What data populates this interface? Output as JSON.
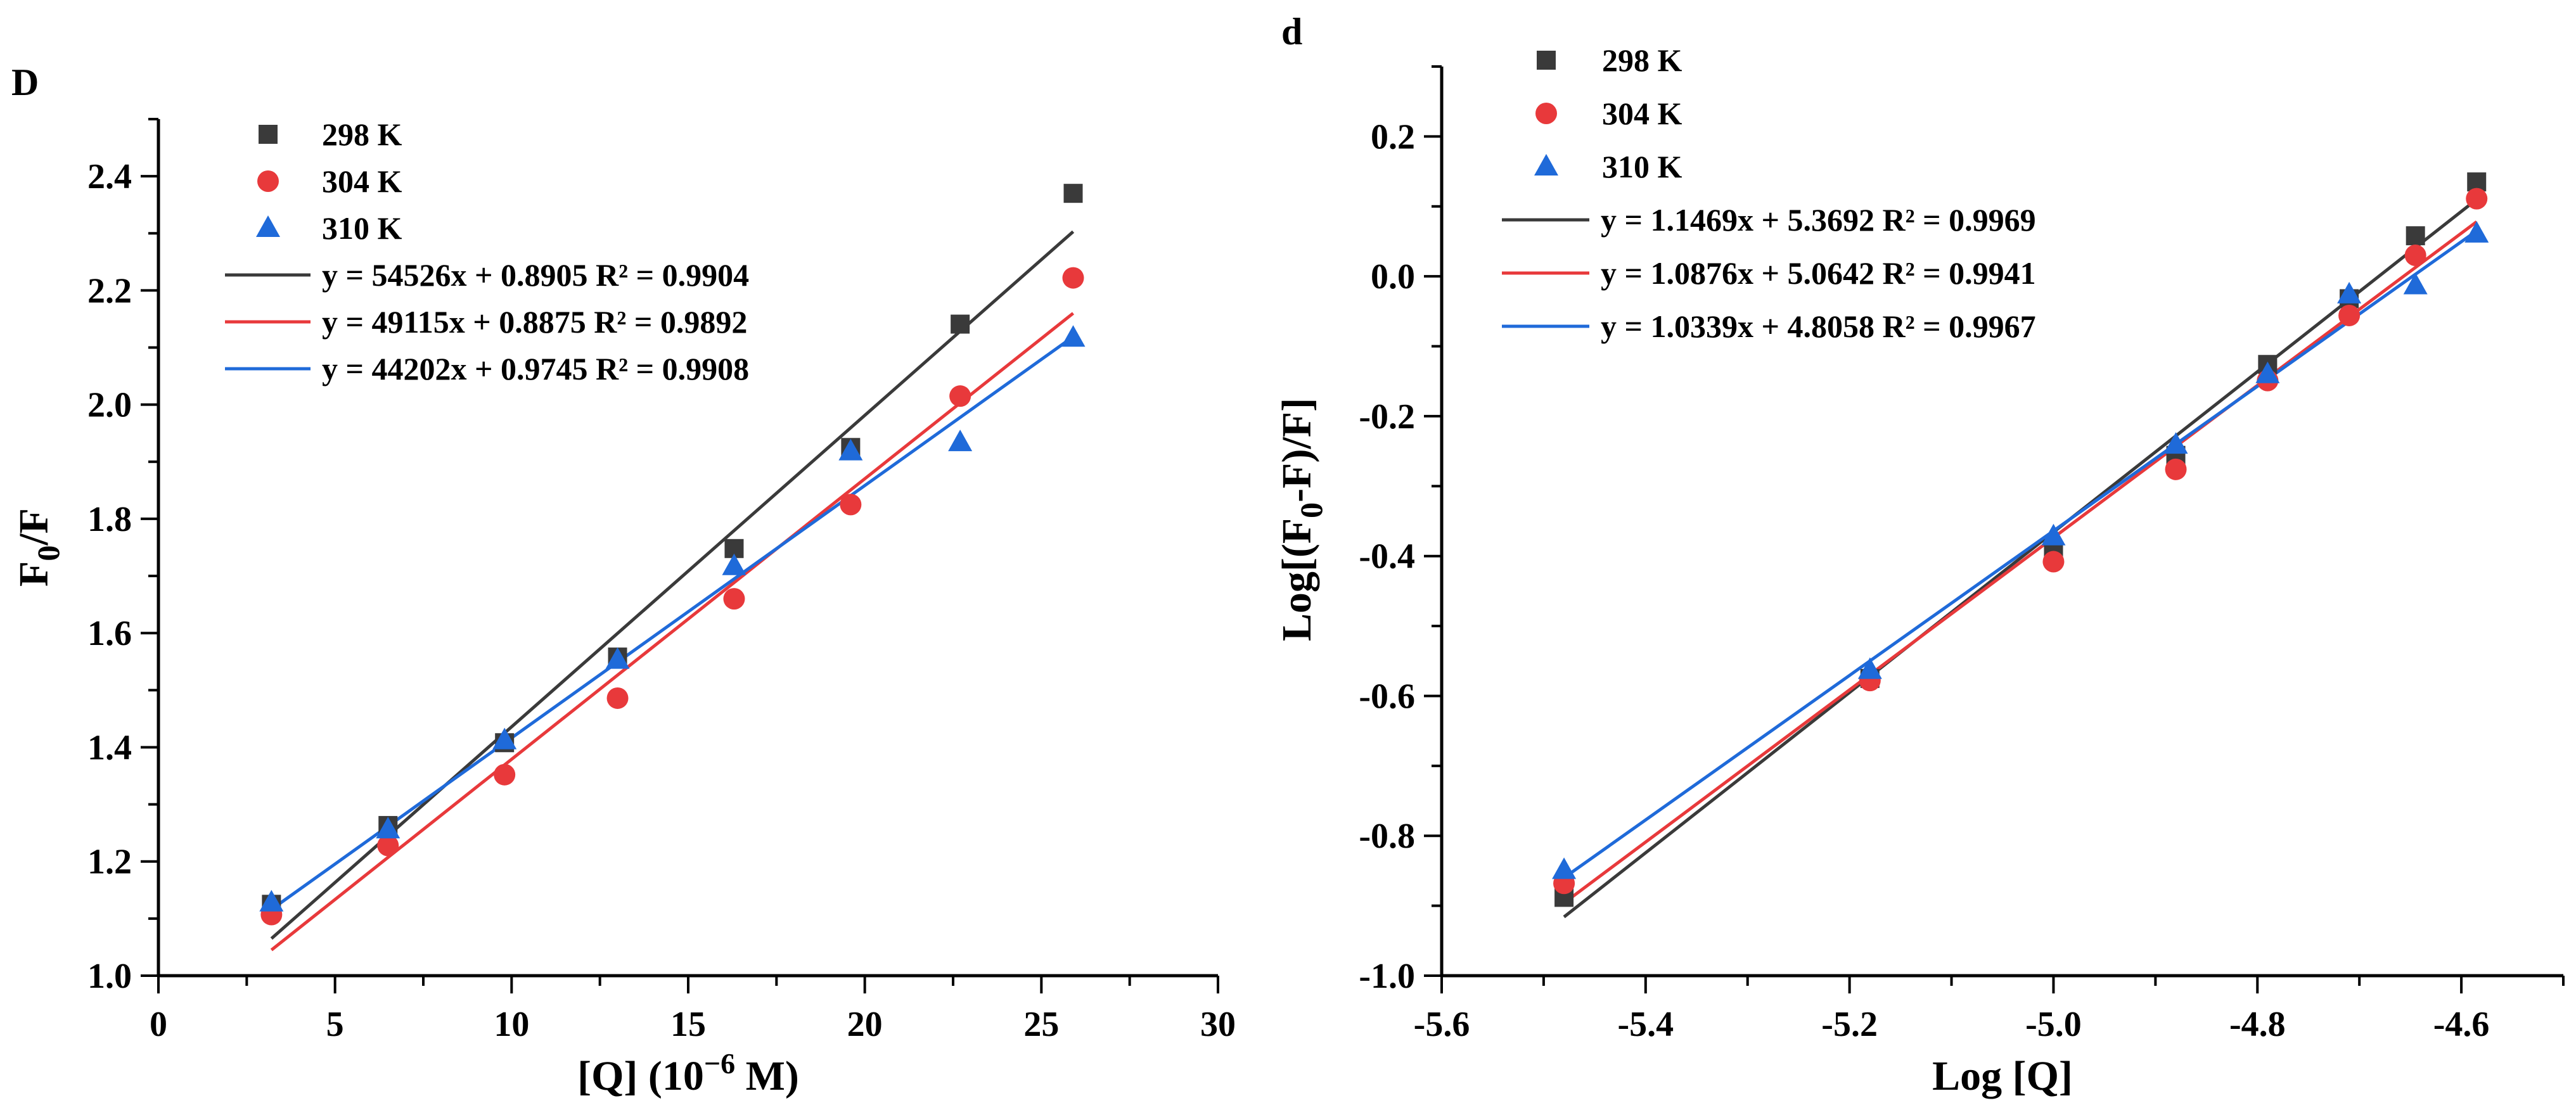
{
  "chart_data": [
    {
      "type": "scatter",
      "panel_label": "D",
      "title": "",
      "xlabel": "[Q] (10",
      "xlabel_superscript": "−6",
      "xlabel_suffix": " M)",
      "ylabel": "F",
      "ylabel_subscript": "0",
      "ylabel_suffix": "/F",
      "xlim": [
        0,
        30
      ],
      "ylim": [
        1.0,
        2.5
      ],
      "xticks": [
        0,
        5,
        10,
        15,
        20,
        25,
        30
      ],
      "xtick_labels": [
        "0",
        "5",
        "10",
        "15",
        "20",
        "25",
        "30"
      ],
      "yticks": [
        1.0,
        1.2,
        1.4,
        1.6,
        1.8,
        2.0,
        2.2,
        2.4
      ],
      "ytick_labels": [
        "1.0",
        "1.2",
        "1.4",
        "1.6",
        "1.8",
        "2.0",
        "2.2",
        "2.4"
      ],
      "legend_position": "top-left",
      "series": [
        {
          "name": "298 K",
          "marker": "square",
          "color": "#3a3a3a",
          "x": [
            3.2,
            6.5,
            9.8,
            13.0,
            16.3,
            19.6,
            22.7,
            25.9
          ],
          "y": [
            1.125,
            1.263,
            1.408,
            1.558,
            1.748,
            1.925,
            2.141,
            2.37
          ],
          "fit": {
            "label": "y = 54526x + 0.8905  R² = 0.9904",
            "color": "#3a3a3a",
            "x": [
              3.2,
              25.9
            ],
            "y": [
              1.065,
              2.303
            ]
          }
        },
        {
          "name": "304 K",
          "marker": "circle",
          "color": "#e8393b",
          "x": [
            3.2,
            6.5,
            9.8,
            13.0,
            16.3,
            19.6,
            22.7,
            25.9
          ],
          "y": [
            1.107,
            1.228,
            1.352,
            1.486,
            1.66,
            1.825,
            2.015,
            2.222
          ],
          "fit": {
            "label": "y = 49115x + 0.8875  R² = 0.9892",
            "color": "#e8393b",
            "x": [
              3.2,
              25.9
            ],
            "y": [
              1.045,
              2.16
            ]
          }
        },
        {
          "name": "310 K",
          "marker": "triangle",
          "color": "#1f6ad9",
          "x": [
            3.2,
            6.5,
            9.8,
            13.0,
            16.3,
            19.6,
            22.7,
            25.9
          ],
          "y": [
            1.128,
            1.256,
            1.412,
            1.553,
            1.717,
            1.918,
            1.934,
            2.117
          ],
          "fit": {
            "label": "y = 44202x + 0.9745  R² = 0.9908",
            "color": "#1f6ad9",
            "x": [
              3.2,
              25.9
            ],
            "y": [
              1.116,
              2.119
            ]
          }
        }
      ]
    },
    {
      "type": "scatter",
      "panel_label": "d",
      "title": "",
      "xlabel": "Log [Q]",
      "ylabel": "Log[(F",
      "ylabel_subscript": "0",
      "ylabel_suffix": "-F)/F]",
      "xlim": [
        -5.6,
        -4.5
      ],
      "ylim": [
        -1.0,
        0.3
      ],
      "xticks": [
        -5.6,
        -5.4,
        -5.2,
        -5.0,
        -4.8,
        -4.6
      ],
      "xtick_labels": [
        "-5.6",
        "-5.4",
        "-5.2",
        "-5.0",
        "-4.8",
        "-4.6"
      ],
      "yticks": [
        -1.0,
        -0.8,
        -0.6,
        -0.4,
        -0.2,
        0.0,
        0.2
      ],
      "ytick_labels": [
        "-1.0",
        "-0.8",
        "-0.6",
        "-0.4",
        "-0.2",
        "0.0",
        "0.2"
      ],
      "legend_position": "top-left",
      "series": [
        {
          "name": "298 K",
          "marker": "square",
          "color": "#3a3a3a",
          "x": [
            -5.48,
            -5.18,
            -5.0,
            -4.88,
            -4.79,
            -4.71,
            -4.645,
            -4.585
          ],
          "y": [
            -0.888,
            -0.575,
            -0.397,
            -0.256,
            -0.126,
            -0.032,
            0.058,
            0.135
          ],
          "fit": {
            "label": "y = 1.1469x + 5.3692  R² = 0.9969",
            "color": "#3a3a3a",
            "x": [
              -5.48,
              -4.585
            ],
            "y": [
              -0.916,
              0.11
            ]
          }
        },
        {
          "name": "304 K",
          "marker": "circle",
          "color": "#e8393b",
          "x": [
            -5.48,
            -5.18,
            -5.0,
            -4.88,
            -4.79,
            -4.71,
            -4.645,
            -4.585
          ],
          "y": [
            -0.868,
            -0.578,
            -0.408,
            -0.276,
            -0.149,
            -0.056,
            0.03,
            0.111
          ],
          "fit": {
            "label": "y = 1.0876x + 5.0642  R² = 0.9941",
            "color": "#e8393b",
            "x": [
              -5.48,
              -4.585
            ],
            "y": [
              -0.896,
              0.078
            ]
          }
        },
        {
          "name": "310 K",
          "marker": "triangle",
          "color": "#1f6ad9",
          "x": [
            -5.48,
            -5.18,
            -5.0,
            -4.88,
            -4.79,
            -4.71,
            -4.645,
            -4.585
          ],
          "y": [
            -0.849,
            -0.563,
            -0.372,
            -0.241,
            -0.14,
            -0.026,
            -0.013,
            0.061
          ],
          "fit": {
            "label": "y = 1.0339x + 4.8058  R² = 0.9967",
            "color": "#1f6ad9",
            "x": [
              -5.48,
              -4.585
            ],
            "y": [
              -0.86,
              0.065
            ]
          }
        }
      ]
    }
  ]
}
